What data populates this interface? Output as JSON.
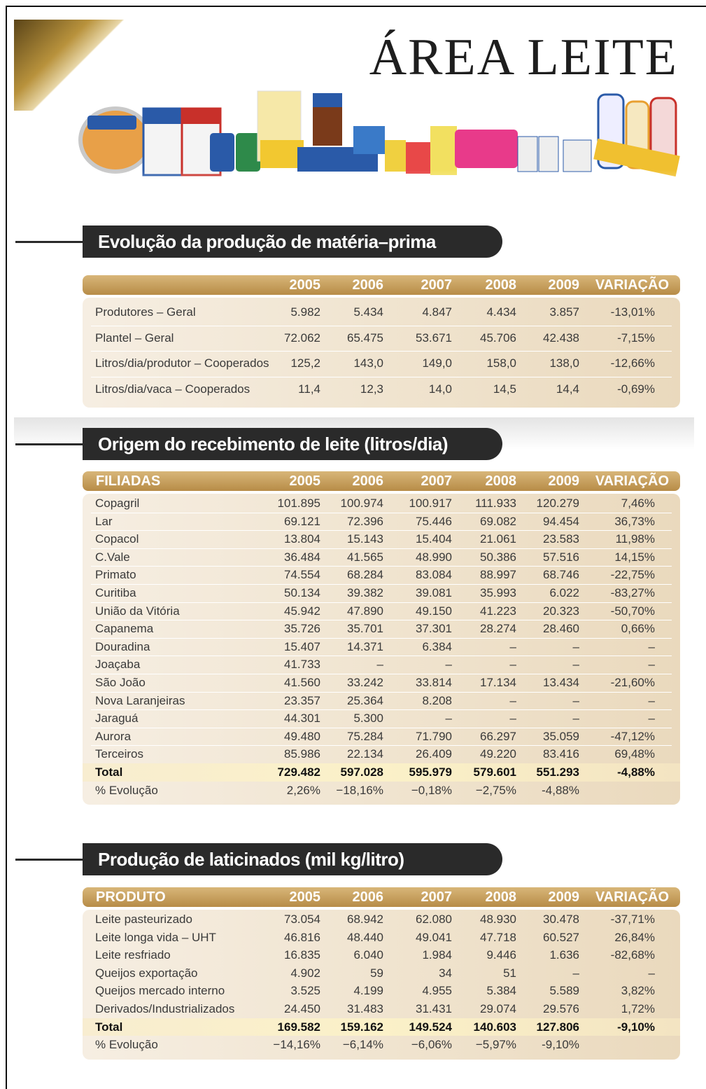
{
  "header": {
    "title": "ÁREA LEITE"
  },
  "sections": [
    {
      "heading": "Evolução da produção de matéria–prima",
      "columns": [
        "2005",
        "2006",
        "2007",
        "2008",
        "2009",
        "VARIAÇÃO"
      ],
      "rows": [
        [
          "Produtores – Geral",
          "5.982",
          "5.434",
          "4.847",
          "4.434",
          "3.857",
          "-13,01%"
        ],
        [
          "Plantel – Geral",
          "72.062",
          "65.475",
          "53.671",
          "45.706",
          "42.438",
          "-7,15%"
        ],
        [
          "Litros/dia/produtor – Cooperados",
          "125,2",
          "143,0",
          "149,0",
          "158,0",
          "138,0",
          "-12,66%"
        ],
        [
          "Litros/dia/vaca – Cooperados",
          "11,4",
          "12,3",
          "14,0",
          "14,5",
          "14,4",
          "-0,69%"
        ]
      ]
    },
    {
      "heading": "Origem do recebimento de leite (litros/dia)",
      "label_header": "FILIADAS",
      "columns": [
        "2005",
        "2006",
        "2007",
        "2008",
        "2009",
        "VARIAÇÃO"
      ],
      "rows": [
        [
          "Copagril",
          "101.895",
          "100.974",
          "100.917",
          "111.933",
          "120.279",
          "7,46%"
        ],
        [
          "Lar",
          "69.121",
          "72.396",
          "75.446",
          "69.082",
          "94.454",
          "36,73%"
        ],
        [
          "Copacol",
          "13.804",
          "15.143",
          "15.404",
          "21.061",
          "23.583",
          "11,98%"
        ],
        [
          "C.Vale",
          "36.484",
          "41.565",
          "48.990",
          "50.386",
          "57.516",
          "14,15%"
        ],
        [
          "Primato",
          "74.554",
          "68.284",
          "83.084",
          "88.997",
          "68.746",
          "-22,75%"
        ],
        [
          "Curitiba",
          "50.134",
          "39.382",
          "39.081",
          "35.993",
          "6.022",
          "-83,27%"
        ],
        [
          "União da Vitória",
          "45.942",
          "47.890",
          "49.150",
          "41.223",
          "20.323",
          "-50,70%"
        ],
        [
          "Capanema",
          "35.726",
          "35.701",
          "37.301",
          "28.274",
          "28.460",
          "0,66%"
        ],
        [
          "Douradina",
          "15.407",
          "14.371",
          "6.384",
          "–",
          "–",
          "–"
        ],
        [
          "Joaçaba",
          "41.733",
          "–",
          "–",
          "–",
          "–",
          "–"
        ],
        [
          "São João",
          "41.560",
          "33.242",
          "33.814",
          "17.134",
          "13.434",
          "-21,60%"
        ],
        [
          "Nova Laranjeiras",
          "23.357",
          "25.364",
          "8.208",
          "–",
          "–",
          "–"
        ],
        [
          "Jaraguá",
          "44.301",
          "5.300",
          "–",
          "–",
          "–",
          "–"
        ],
        [
          "Aurora",
          "49.480",
          "75.284",
          "71.790",
          "66.297",
          "35.059",
          "-47,12%"
        ],
        [
          "Terceiros",
          "85.986",
          "22.134",
          "26.409",
          "49.220",
          "83.416",
          "69,48%"
        ]
      ],
      "total": [
        "Total",
        "729.482",
        "597.028",
        "595.979",
        "579.601",
        "551.293",
        "-4,88%"
      ],
      "evolution": [
        "% Evolução",
        "2,26%",
        "−18,16%",
        "−0,18%",
        "−2,75%",
        "-4,88%"
      ]
    },
    {
      "heading": "Produção de laticinados (mil kg/litro)",
      "label_header": "PRODUTO",
      "columns": [
        "2005",
        "2006",
        "2007",
        "2008",
        "2009",
        "VARIAÇÃO"
      ],
      "rows": [
        [
          "Leite pasteurizado",
          "73.054",
          "68.942",
          "62.080",
          "48.930",
          "30.478",
          "-37,71%"
        ],
        [
          "Leite longa vida – UHT",
          "46.816",
          "48.440",
          "49.041",
          "47.718",
          "60.527",
          "26,84%"
        ],
        [
          "Leite resfriado",
          "16.835",
          "6.040",
          "1.984",
          "9.446",
          "1.636",
          "-82,68%"
        ],
        [
          "Queijos exportação",
          "4.902",
          "59",
          "34",
          "51",
          "–",
          "–"
        ],
        [
          "Queijos mercado interno",
          "3.525",
          "4.199",
          "4.955",
          "5.384",
          "5.589",
          "3,82%"
        ],
        [
          "Derivados/Industrializados",
          "24.450",
          "31.483",
          "31.431",
          "29.074",
          "29.576",
          "1,72%"
        ]
      ],
      "total": [
        "Total",
        "169.582",
        "159.162",
        "149.524",
        "140.603",
        "127.806",
        "-9,10%"
      ],
      "evolution": [
        "% Evolução",
        "−14,16%",
        "−6,14%",
        "−6,06%",
        "−5,97%",
        "-9,10%"
      ]
    }
  ]
}
